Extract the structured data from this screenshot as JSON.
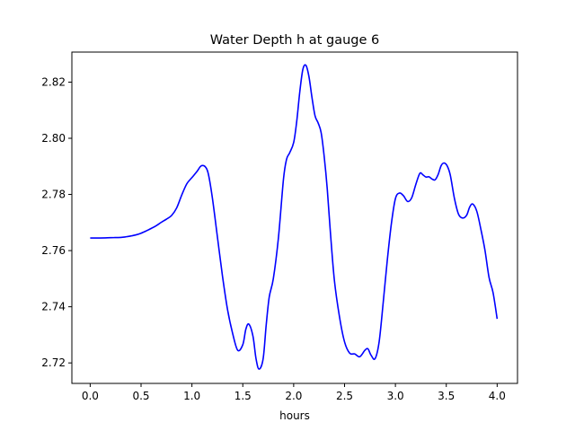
{
  "chart_data": {
    "type": "line",
    "title": "Water Depth h at gauge 6",
    "xlabel": "hours",
    "ylabel": "",
    "xlim": [
      -0.18,
      4.2
    ],
    "ylim": [
      2.7127,
      2.8307
    ],
    "xticks": [
      0.0,
      0.5,
      1.0,
      1.5,
      2.0,
      2.5,
      3.0,
      3.5,
      4.0
    ],
    "xtick_labels": [
      "0.0",
      "0.5",
      "1.0",
      "1.5",
      "2.0",
      "2.5",
      "3.0",
      "3.5",
      "4.0"
    ],
    "yticks": [
      2.72,
      2.74,
      2.76,
      2.78,
      2.8,
      2.82
    ],
    "ytick_labels": [
      "2.72",
      "2.74",
      "2.76",
      "2.78",
      "2.80",
      "2.82"
    ],
    "grid": false,
    "legend": "none",
    "series": [
      {
        "color": "#0000ff",
        "x": [
          0.0,
          0.1,
          0.2,
          0.3,
          0.35,
          0.4,
          0.45,
          0.5,
          0.55,
          0.6,
          0.65,
          0.7,
          0.75,
          0.8,
          0.85,
          0.9,
          0.95,
          1.0,
          1.05,
          1.08,
          1.1,
          1.13,
          1.16,
          1.2,
          1.25,
          1.3,
          1.35,
          1.4,
          1.45,
          1.5,
          1.53,
          1.56,
          1.6,
          1.63,
          1.66,
          1.7,
          1.73,
          1.76,
          1.8,
          1.85,
          1.9,
          1.93,
          1.96,
          2.0,
          2.03,
          2.06,
          2.09,
          2.12,
          2.15,
          2.18,
          2.21,
          2.24,
          2.27,
          2.3,
          2.33,
          2.36,
          2.4,
          2.45,
          2.5,
          2.55,
          2.6,
          2.65,
          2.7,
          2.73,
          2.76,
          2.8,
          2.84,
          2.88,
          2.92,
          2.96,
          3.0,
          3.04,
          3.08,
          3.12,
          3.16,
          3.2,
          3.24,
          3.27,
          3.3,
          3.33,
          3.36,
          3.39,
          3.42,
          3.45,
          3.48,
          3.51,
          3.54,
          3.58,
          3.62,
          3.66,
          3.7,
          3.73,
          3.76,
          3.8,
          3.84,
          3.88,
          3.92,
          3.96,
          4.0
        ],
        "y": [
          2.7645,
          2.7645,
          2.7646,
          2.7647,
          2.7649,
          2.7652,
          2.7656,
          2.7662,
          2.767,
          2.7679,
          2.7689,
          2.7701,
          2.7712,
          2.7725,
          2.7752,
          2.7798,
          2.7838,
          2.786,
          2.7882,
          2.7898,
          2.7903,
          2.7899,
          2.7875,
          2.779,
          2.765,
          2.751,
          2.739,
          2.7305,
          2.7245,
          2.7265,
          2.732,
          2.7338,
          2.7295,
          2.7215,
          2.7178,
          2.7215,
          2.7335,
          2.7435,
          2.75,
          2.7645,
          2.7855,
          2.7925,
          2.7948,
          2.7985,
          2.806,
          2.8165,
          2.8245,
          2.826,
          2.822,
          2.8145,
          2.808,
          2.8055,
          2.802,
          2.7935,
          2.782,
          2.767,
          2.7495,
          2.7365,
          2.7275,
          2.7235,
          2.7232,
          2.7222,
          2.7245,
          2.725,
          2.7228,
          2.7215,
          2.7275,
          2.7415,
          2.7565,
          2.7695,
          2.7785,
          2.7805,
          2.7795,
          2.7775,
          2.7788,
          2.7835,
          2.7875,
          2.787,
          2.7862,
          2.7863,
          2.7855,
          2.7852,
          2.7871,
          2.7903,
          2.7912,
          2.7901,
          2.7868,
          2.7786,
          2.773,
          2.7716,
          2.7726,
          2.7755,
          2.7766,
          2.774,
          2.7676,
          2.7602,
          2.7505,
          2.745,
          2.7357
        ]
      }
    ]
  }
}
